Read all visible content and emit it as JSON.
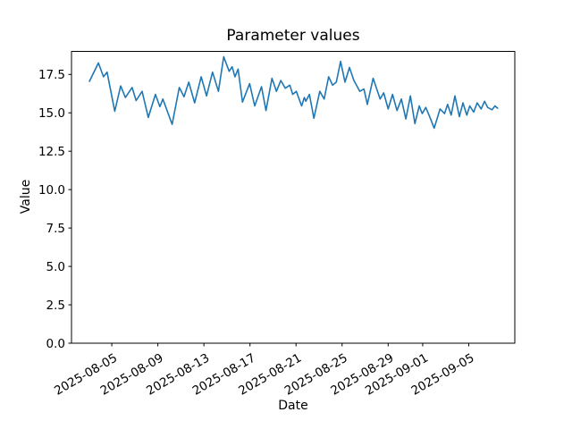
{
  "chart_data": {
    "type": "line",
    "title": "Parameter values",
    "xlabel": "Date",
    "ylabel": "Value",
    "legend": "none",
    "grid": false,
    "colors": {
      "line": "#1f77b4",
      "text": "#000000",
      "spine": "#000000",
      "background": "#ffffff"
    },
    "x_unit": "days relative to 2025-08-05",
    "xlim": [
      -3.5,
      35.0
    ],
    "ylim": [
      0,
      19.0
    ],
    "x_ticks": [
      {
        "d": 0,
        "label": "2025-08-05"
      },
      {
        "d": 4,
        "label": "2025-08-09"
      },
      {
        "d": 8,
        "label": "2025-08-13"
      },
      {
        "d": 12,
        "label": "2025-08-17"
      },
      {
        "d": 16,
        "label": "2025-08-21"
      },
      {
        "d": 20,
        "label": "2025-08-25"
      },
      {
        "d": 24,
        "label": "2025-08-29"
      },
      {
        "d": 27,
        "label": "2025-09-01"
      },
      {
        "d": 31,
        "label": "2025-09-05"
      }
    ],
    "y_ticks": [
      {
        "v": 0,
        "label": "0.0"
      },
      {
        "v": 2.5,
        "label": "2.5"
      },
      {
        "v": 5,
        "label": "5.0"
      },
      {
        "v": 7.5,
        "label": "7.5"
      },
      {
        "v": 10,
        "label": "10.0"
      },
      {
        "v": 12.5,
        "label": "12.5"
      },
      {
        "v": 15,
        "label": "15.0"
      },
      {
        "v": 17.5,
        "label": "17.5"
      }
    ],
    "points": [
      [
        -1.94,
        17.05
      ],
      [
        -1.16,
        18.25
      ],
      [
        -0.72,
        17.35
      ],
      [
        -0.41,
        17.65
      ],
      [
        0.26,
        15.1
      ],
      [
        0.77,
        16.75
      ],
      [
        1.18,
        16.0
      ],
      [
        1.76,
        16.65
      ],
      [
        2.11,
        15.8
      ],
      [
        2.63,
        16.4
      ],
      [
        3.17,
        14.7
      ],
      [
        3.79,
        16.2
      ],
      [
        4.18,
        15.4
      ],
      [
        4.43,
        15.9
      ],
      [
        5.24,
        14.25
      ],
      [
        5.86,
        16.65
      ],
      [
        6.27,
        16.05
      ],
      [
        6.68,
        17.0
      ],
      [
        7.2,
        15.65
      ],
      [
        7.76,
        17.35
      ],
      [
        8.23,
        16.1
      ],
      [
        8.75,
        17.65
      ],
      [
        9.26,
        16.4
      ],
      [
        9.72,
        18.65
      ],
      [
        10.19,
        17.7
      ],
      [
        10.45,
        18.0
      ],
      [
        10.7,
        17.35
      ],
      [
        10.97,
        17.85
      ],
      [
        11.35,
        15.7
      ],
      [
        11.97,
        16.9
      ],
      [
        12.41,
        15.45
      ],
      [
        13.0,
        16.7
      ],
      [
        13.39,
        15.15
      ],
      [
        13.91,
        17.25
      ],
      [
        14.3,
        16.4
      ],
      [
        14.68,
        17.1
      ],
      [
        15.07,
        16.6
      ],
      [
        15.46,
        16.8
      ],
      [
        15.71,
        16.2
      ],
      [
        16.02,
        16.4
      ],
      [
        16.49,
        15.45
      ],
      [
        16.72,
        16.0
      ],
      [
        16.85,
        15.75
      ],
      [
        17.16,
        16.2
      ],
      [
        17.55,
        14.65
      ],
      [
        18.06,
        16.4
      ],
      [
        18.44,
        15.9
      ],
      [
        18.83,
        17.35
      ],
      [
        19.17,
        16.8
      ],
      [
        19.5,
        17.0
      ],
      [
        19.87,
        18.35
      ],
      [
        20.25,
        17.0
      ],
      [
        20.64,
        17.95
      ],
      [
        21.03,
        17.1
      ],
      [
        21.54,
        16.4
      ],
      [
        21.9,
        16.55
      ],
      [
        22.19,
        15.55
      ],
      [
        22.7,
        17.25
      ],
      [
        23.3,
        15.9
      ],
      [
        23.61,
        16.3
      ],
      [
        24.0,
        15.25
      ],
      [
        24.38,
        16.2
      ],
      [
        24.77,
        15.15
      ],
      [
        25.15,
        15.9
      ],
      [
        25.54,
        14.6
      ],
      [
        25.93,
        16.1
      ],
      [
        26.32,
        14.3
      ],
      [
        26.7,
        15.45
      ],
      [
        26.96,
        14.95
      ],
      [
        27.27,
        15.35
      ],
      [
        27.63,
        14.7
      ],
      [
        28.0,
        14.0
      ],
      [
        28.51,
        15.25
      ],
      [
        28.9,
        14.95
      ],
      [
        29.16,
        15.55
      ],
      [
        29.47,
        14.85
      ],
      [
        29.8,
        16.1
      ],
      [
        30.19,
        14.75
      ],
      [
        30.5,
        15.65
      ],
      [
        30.83,
        14.85
      ],
      [
        31.09,
        15.45
      ],
      [
        31.43,
        15.05
      ],
      [
        31.73,
        15.65
      ],
      [
        32.07,
        15.25
      ],
      [
        32.38,
        15.75
      ],
      [
        32.64,
        15.35
      ],
      [
        33.03,
        15.2
      ],
      [
        33.28,
        15.45
      ],
      [
        33.51,
        15.3
      ]
    ]
  }
}
